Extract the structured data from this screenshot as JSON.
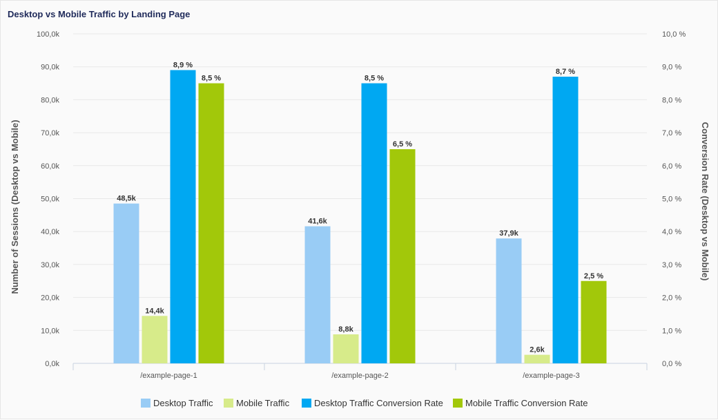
{
  "chart_data": {
    "type": "bar",
    "title": "Desktop vs Mobile Traffic by Landing Page",
    "categories": [
      "/example-page-1",
      "/example-page-2",
      "/example-page-3"
    ],
    "y_left": {
      "label": "Number of Sessions (Desktop vs Mobile)",
      "min": 0,
      "max": 100000,
      "step": 10000,
      "tick_labels": [
        "0,0k",
        "10,0k",
        "20,0k",
        "30,0k",
        "40,0k",
        "50,0k",
        "60,0k",
        "70,0k",
        "80,0k",
        "90,0k",
        "100,0k"
      ]
    },
    "y_right": {
      "label": "Conversion Rate (Desktop vs Mobile)",
      "min": 0,
      "max": 10,
      "step": 1,
      "tick_labels": [
        "0,0 %",
        "1,0 %",
        "2,0 %",
        "3,0 %",
        "4,0 %",
        "5,0 %",
        "6,0 %",
        "7,0 %",
        "8,0 %",
        "9,0 %",
        "10,0 %"
      ]
    },
    "grid": true,
    "legend_position": "bottom",
    "series": [
      {
        "name": "Desktop Traffic",
        "axis": "left",
        "color": "#99ccf5",
        "values": [
          48500,
          41600,
          37900
        ],
        "labels": [
          "48,5k",
          "41,6k",
          "37,9k"
        ]
      },
      {
        "name": "Mobile Traffic",
        "axis": "left",
        "color": "#d7eb8a",
        "values": [
          14400,
          8800,
          2600
        ],
        "labels": [
          "14,4k",
          "8,8k",
          "2,6k"
        ]
      },
      {
        "name": "Desktop Traffic Conversion Rate",
        "axis": "right",
        "color": "#00a8f2",
        "values": [
          8.9,
          8.5,
          8.7
        ],
        "labels": [
          "8,9 %",
          "8,5 %",
          "8,7 %"
        ]
      },
      {
        "name": "Mobile Traffic Conversion Rate",
        "axis": "right",
        "color": "#a2c80a",
        "values": [
          8.5,
          6.5,
          2.5
        ],
        "labels": [
          "8,5 %",
          "6,5 %",
          "2,5 %"
        ]
      }
    ]
  }
}
